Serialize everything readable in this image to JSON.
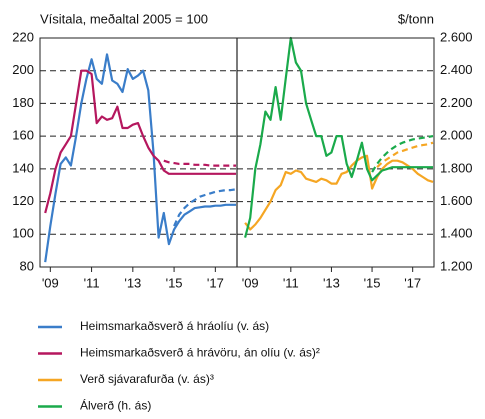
{
  "chart_data": [
    {
      "type": "line",
      "title": "Vísitala, meðaltal 2005 = 100",
      "x": [
        2008.75,
        2009,
        2009.25,
        2009.5,
        2009.75,
        2010,
        2010.25,
        2010.5,
        2010.75,
        2011,
        2011.25,
        2011.5,
        2011.75,
        2012,
        2012.25,
        2012.5,
        2012.75,
        2013,
        2013.25,
        2013.5,
        2013.75,
        2014,
        2014.25,
        2014.5,
        2014.75,
        2015,
        2015.25,
        2015.5,
        2015.75,
        2016,
        2016.25,
        2016.5,
        2016.75,
        2017,
        2017.25,
        2017.5,
        2017.75,
        2018
      ],
      "xlim": [
        2008.5,
        2018.05
      ],
      "xticks": [
        {
          "value": 2009,
          "label": "'09"
        },
        {
          "value": 2011,
          "label": "'11"
        },
        {
          "value": 2013,
          "label": "'13"
        },
        {
          "value": 2015,
          "label": "'15"
        },
        {
          "value": 2017,
          "label": "'17"
        }
      ],
      "ylim": [
        80,
        220
      ],
      "yticks": [
        80,
        100,
        120,
        140,
        160,
        180,
        200,
        220
      ],
      "grid": true,
      "series": [
        {
          "name": "Heimsmarkaðsverð á hráolíu (v. ás)",
          "color": "#3a7dc9",
          "values": [
            83,
            105,
            125,
            143,
            147,
            142,
            160,
            180,
            195,
            207,
            195,
            192,
            210,
            194,
            192,
            187,
            201,
            195,
            197,
            200,
            188,
            150,
            98,
            113,
            94,
            103,
            108,
            112,
            114,
            116,
            116.5,
            117,
            117,
            117.5,
            117.5,
            118,
            118,
            118
          ],
          "alt_values": [
            null,
            null,
            null,
            null,
            null,
            null,
            null,
            null,
            null,
            null,
            null,
            null,
            null,
            null,
            null,
            null,
            null,
            null,
            null,
            null,
            null,
            null,
            null,
            null,
            null,
            105,
            112,
            116,
            119,
            121,
            123,
            124,
            125,
            126,
            126.5,
            127,
            127,
            127.5
          ]
        },
        {
          "name": "Heimsmarkaðsverð á hrávöru, án olíu (v. ás)²",
          "color": "#b5175e",
          "values": [
            113,
            125,
            140,
            150,
            155,
            160,
            180,
            200,
            200,
            198,
            168,
            172,
            170,
            171,
            178,
            165,
            165,
            167,
            168,
            160,
            153,
            148,
            145,
            139,
            137,
            137,
            137,
            137,
            137,
            137,
            137,
            137,
            137,
            137,
            137,
            137,
            137,
            137
          ],
          "alt_values": [
            null,
            null,
            null,
            null,
            null,
            null,
            null,
            null,
            null,
            null,
            null,
            null,
            null,
            null,
            null,
            null,
            null,
            null,
            null,
            null,
            null,
            null,
            null,
            145,
            144,
            143.5,
            143,
            143,
            143,
            142.5,
            142.5,
            142.5,
            142,
            142,
            142,
            142,
            142,
            142
          ]
        }
      ]
    },
    {
      "type": "line",
      "title": "$/tonn",
      "x": [
        2008.75,
        2009,
        2009.25,
        2009.5,
        2009.75,
        2010,
        2010.25,
        2010.5,
        2010.75,
        2011,
        2011.25,
        2011.5,
        2011.75,
        2012,
        2012.25,
        2012.5,
        2012.75,
        2013,
        2013.25,
        2013.5,
        2013.75,
        2014,
        2014.25,
        2014.5,
        2014.75,
        2015,
        2015.25,
        2015.5,
        2015.75,
        2016,
        2016.25,
        2016.5,
        2016.75,
        2017,
        2017.25,
        2017.5,
        2017.75,
        2018
      ],
      "xlim": [
        2008.35,
        2018.05
      ],
      "xticks": [
        {
          "value": 2009,
          "label": "'09"
        },
        {
          "value": 2011,
          "label": "'11"
        },
        {
          "value": 2013,
          "label": "'13"
        },
        {
          "value": 2015,
          "label": "'15"
        },
        {
          "value": 2017,
          "label": "'17"
        }
      ],
      "ylim": [
        80,
        220
      ],
      "y2lim": [
        1200,
        2600
      ],
      "y2ticks": [
        {
          "value": 1200,
          "label": "1.200"
        },
        {
          "value": 1400,
          "label": "1.400"
        },
        {
          "value": 1600,
          "label": "1.600"
        },
        {
          "value": 1800,
          "label": "1.800"
        },
        {
          "value": 2000,
          "label": "2.000"
        },
        {
          "value": 2200,
          "label": "2.200"
        },
        {
          "value": 2400,
          "label": "2.400"
        },
        {
          "value": 2600,
          "label": "2.600"
        }
      ],
      "grid": true,
      "series": [
        {
          "name": "Verð sjávarafurða (v. ás)³",
          "color": "#f5a623",
          "values": [
            107,
            103,
            106,
            110,
            115,
            120,
            127,
            130,
            138,
            137,
            139,
            138,
            134,
            133,
            132,
            134,
            133,
            131,
            131,
            137,
            138,
            142,
            145,
            147,
            148,
            128,
            135,
            140,
            143,
            145,
            145,
            144,
            142,
            140,
            137,
            135,
            133,
            132
          ],
          "alt_values": [
            null,
            null,
            null,
            null,
            null,
            null,
            null,
            null,
            null,
            null,
            null,
            null,
            null,
            null,
            null,
            null,
            null,
            null,
            null,
            null,
            null,
            null,
            null,
            null,
            null,
            null,
            141,
            144,
            146,
            148,
            150,
            151,
            152,
            153,
            154,
            154.5,
            155,
            156
          ]
        },
        {
          "name": "Álverð (h. ás)",
          "color": "#1aaa4b",
          "axis": "y2",
          "values": [
            1380,
            1500,
            1800,
            1950,
            2150,
            2100,
            2300,
            2100,
            2350,
            2600,
            2450,
            2400,
            2200,
            2100,
            2000,
            2000,
            1880,
            1900,
            2000,
            2000,
            1830,
            1750,
            1850,
            1960,
            1800,
            1730,
            1760,
            1790,
            1800,
            1810,
            1810,
            1810,
            1810,
            1810,
            1810,
            1810,
            1810,
            1810
          ],
          "alt_values": [
            null,
            null,
            null,
            null,
            null,
            null,
            null,
            null,
            null,
            null,
            null,
            null,
            null,
            null,
            null,
            null,
            null,
            null,
            null,
            null,
            null,
            null,
            null,
            null,
            null,
            1780,
            1830,
            1870,
            1900,
            1925,
            1945,
            1960,
            1970,
            1980,
            1985,
            1990,
            1995,
            2000
          ]
        }
      ]
    }
  ]
}
